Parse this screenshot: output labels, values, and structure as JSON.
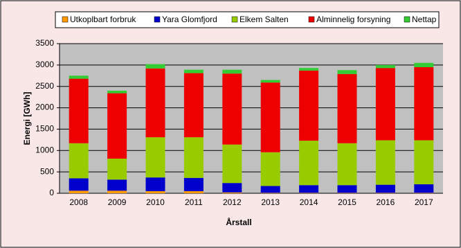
{
  "chart_data": {
    "type": "stacked_bar",
    "y_label": "Energi [GWh]",
    "x_label": "Årstall",
    "categories": [
      "2008",
      "2009",
      "2010",
      "2011",
      "2012",
      "2013",
      "2014",
      "2015",
      "2016",
      "2017"
    ],
    "series": [
      {
        "name": "Utkoplbart forbruk",
        "color": "#ff9900",
        "values": [
          60,
          60,
          50,
          50,
          20,
          10,
          10,
          10,
          10,
          10
        ]
      },
      {
        "name": "Yara Glomfjord",
        "color": "#0000cc",
        "values": [
          290,
          260,
          320,
          310,
          220,
          160,
          180,
          180,
          190,
          200
        ]
      },
      {
        "name": "Elkem Salten",
        "color": "#99cc00",
        "values": [
          820,
          490,
          940,
          950,
          900,
          790,
          1040,
          980,
          1040,
          1030
        ]
      },
      {
        "name": "Alminnelig forsyning",
        "color": "#ee0000",
        "values": [
          1510,
          1530,
          1610,
          1500,
          1660,
          1630,
          1640,
          1620,
          1690,
          1710
        ]
      },
      {
        "name": "Nettap",
        "color": "#33cc33",
        "values": [
          70,
          60,
          100,
          80,
          90,
          60,
          60,
          90,
          70,
          100
        ]
      }
    ],
    "ylim": [
      0,
      3500
    ],
    "yticks": [
      0,
      500,
      1000,
      1500,
      2000,
      2500,
      3000,
      3500
    ],
    "grid": true
  }
}
